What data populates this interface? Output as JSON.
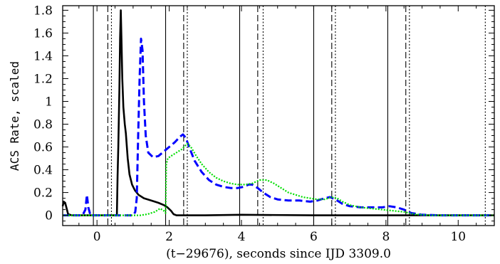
{
  "chart_data": {
    "type": "line",
    "title": "",
    "xlabel": "(t−29676), seconds since IJD 3309.0",
    "ylabel": "ACS Rate, scaled",
    "xlim": [
      -0.95,
      11.0
    ],
    "ylim": [
      -0.09,
      1.84
    ],
    "grid": false,
    "legend": "none",
    "x_ticks": [
      0,
      2,
      4,
      6,
      8,
      10
    ],
    "x_tick_labels": [
      "0",
      "2",
      "4",
      "6",
      "8",
      "10"
    ],
    "y_ticks": [
      0,
      0.2,
      0.4,
      0.6,
      0.8,
      1,
      1.2,
      1.4,
      1.6,
      1.8
    ],
    "y_tick_labels": [
      "0",
      "0.2",
      "0.4",
      "0.6",
      "0.8",
      "1",
      "1.2",
      "1.4",
      "1.6",
      "1.8"
    ],
    "vertical_lines": {
      "solid": [
        -0.1,
        1.9,
        3.95,
        6.0,
        8.05
      ],
      "dashed": [
        0.3,
        2.4,
        4.45,
        6.5,
        8.55
      ],
      "dotted": [
        0.4,
        2.5,
        4.6,
        6.6,
        8.65,
        10.75
      ]
    },
    "series": [
      {
        "color": "#000000",
        "style": "solid",
        "points": [
          [
            -0.95,
            0.08
          ],
          [
            -0.92,
            0.12
          ],
          [
            -0.88,
            0.11
          ],
          [
            -0.84,
            0.06
          ],
          [
            -0.8,
            0.01
          ],
          [
            -0.7,
            0.0
          ],
          [
            -0.4,
            0.0
          ],
          [
            0.0,
            0.0
          ],
          [
            0.3,
            0.0
          ],
          [
            0.55,
            0.0
          ],
          [
            0.57,
            0.35
          ],
          [
            0.59,
            0.6
          ],
          [
            0.62,
            1.1
          ],
          [
            0.64,
            1.55
          ],
          [
            0.66,
            1.8
          ],
          [
            0.68,
            1.5
          ],
          [
            0.7,
            1.2
          ],
          [
            0.73,
            0.95
          ],
          [
            0.77,
            0.8
          ],
          [
            0.8,
            0.72
          ],
          [
            0.85,
            0.5
          ],
          [
            0.9,
            0.36
          ],
          [
            0.97,
            0.27
          ],
          [
            1.05,
            0.22
          ],
          [
            1.15,
            0.18
          ],
          [
            1.3,
            0.15
          ],
          [
            1.5,
            0.13
          ],
          [
            1.7,
            0.11
          ],
          [
            1.85,
            0.09
          ],
          [
            1.95,
            0.07
          ],
          [
            2.05,
            0.04
          ],
          [
            2.12,
            0.01
          ],
          [
            2.2,
            0.0
          ],
          [
            3.0,
            0.0
          ],
          [
            4.0,
            0.005
          ],
          [
            6.0,
            0.0
          ],
          [
            8.0,
            0.0
          ],
          [
            10.0,
            0.0
          ],
          [
            11.0,
            0.0
          ]
        ]
      },
      {
        "color": "#0000ff",
        "style": "dashed",
        "points": [
          [
            -0.95,
            0.0
          ],
          [
            -0.4,
            0.0
          ],
          [
            -0.32,
            0.05
          ],
          [
            -0.28,
            0.18
          ],
          [
            -0.24,
            0.07
          ],
          [
            -0.18,
            0.0
          ],
          [
            0.5,
            0.0
          ],
          [
            1.0,
            0.0
          ],
          [
            1.06,
            0.03
          ],
          [
            1.1,
            0.15
          ],
          [
            1.14,
            0.7
          ],
          [
            1.18,
            1.2
          ],
          [
            1.22,
            1.55
          ],
          [
            1.26,
            1.45
          ],
          [
            1.3,
            1.0
          ],
          [
            1.35,
            0.7
          ],
          [
            1.42,
            0.55
          ],
          [
            1.55,
            0.51
          ],
          [
            1.7,
            0.52
          ],
          [
            1.85,
            0.56
          ],
          [
            2.0,
            0.6
          ],
          [
            2.15,
            0.64
          ],
          [
            2.3,
            0.69
          ],
          [
            2.38,
            0.71
          ],
          [
            2.46,
            0.68
          ],
          [
            2.55,
            0.6
          ],
          [
            2.7,
            0.48
          ],
          [
            2.9,
            0.38
          ],
          [
            3.1,
            0.31
          ],
          [
            3.3,
            0.27
          ],
          [
            3.5,
            0.25
          ],
          [
            3.7,
            0.24
          ],
          [
            3.9,
            0.24
          ],
          [
            4.05,
            0.25
          ],
          [
            4.2,
            0.27
          ],
          [
            4.3,
            0.27
          ],
          [
            4.45,
            0.24
          ],
          [
            4.6,
            0.2
          ],
          [
            4.8,
            0.16
          ],
          [
            5.0,
            0.14
          ],
          [
            5.3,
            0.13
          ],
          [
            5.6,
            0.13
          ],
          [
            5.9,
            0.12
          ],
          [
            6.1,
            0.13
          ],
          [
            6.3,
            0.15
          ],
          [
            6.45,
            0.16
          ],
          [
            6.6,
            0.14
          ],
          [
            6.8,
            0.1
          ],
          [
            7.0,
            0.08
          ],
          [
            7.3,
            0.07
          ],
          [
            7.6,
            0.07
          ],
          [
            7.9,
            0.07
          ],
          [
            8.1,
            0.08
          ],
          [
            8.3,
            0.07
          ],
          [
            8.5,
            0.05
          ],
          [
            8.7,
            0.02
          ],
          [
            9.0,
            0.005
          ],
          [
            9.5,
            0.0
          ],
          [
            11.0,
            0.0
          ]
        ]
      },
      {
        "color": "#00dd00",
        "style": "dotted",
        "points": [
          [
            -0.95,
            0.0
          ],
          [
            0.5,
            0.0
          ],
          [
            1.2,
            0.0
          ],
          [
            1.4,
            0.01
          ],
          [
            1.6,
            0.03
          ],
          [
            1.75,
            0.06
          ],
          [
            1.85,
            0.04
          ],
          [
            1.9,
            0.02
          ],
          [
            1.92,
            0.45
          ],
          [
            1.96,
            0.5
          ],
          [
            2.05,
            0.52
          ],
          [
            2.2,
            0.55
          ],
          [
            2.35,
            0.58
          ],
          [
            2.5,
            0.63
          ],
          [
            2.6,
            0.6
          ],
          [
            2.75,
            0.52
          ],
          [
            2.9,
            0.45
          ],
          [
            3.1,
            0.38
          ],
          [
            3.3,
            0.33
          ],
          [
            3.5,
            0.3
          ],
          [
            3.7,
            0.28
          ],
          [
            3.9,
            0.27
          ],
          [
            4.1,
            0.27
          ],
          [
            4.3,
            0.28
          ],
          [
            4.5,
            0.31
          ],
          [
            4.7,
            0.31
          ],
          [
            4.9,
            0.28
          ],
          [
            5.1,
            0.24
          ],
          [
            5.3,
            0.2
          ],
          [
            5.5,
            0.18
          ],
          [
            5.7,
            0.16
          ],
          [
            5.9,
            0.15
          ],
          [
            6.1,
            0.14
          ],
          [
            6.3,
            0.14
          ],
          [
            6.5,
            0.16
          ],
          [
            6.65,
            0.15
          ],
          [
            6.8,
            0.12
          ],
          [
            7.0,
            0.09
          ],
          [
            7.3,
            0.07
          ],
          [
            7.6,
            0.06
          ],
          [
            7.9,
            0.05
          ],
          [
            8.2,
            0.04
          ],
          [
            8.5,
            0.03
          ],
          [
            8.8,
            0.01
          ],
          [
            9.2,
            0.0
          ],
          [
            11.0,
            0.0
          ]
        ]
      }
    ]
  }
}
